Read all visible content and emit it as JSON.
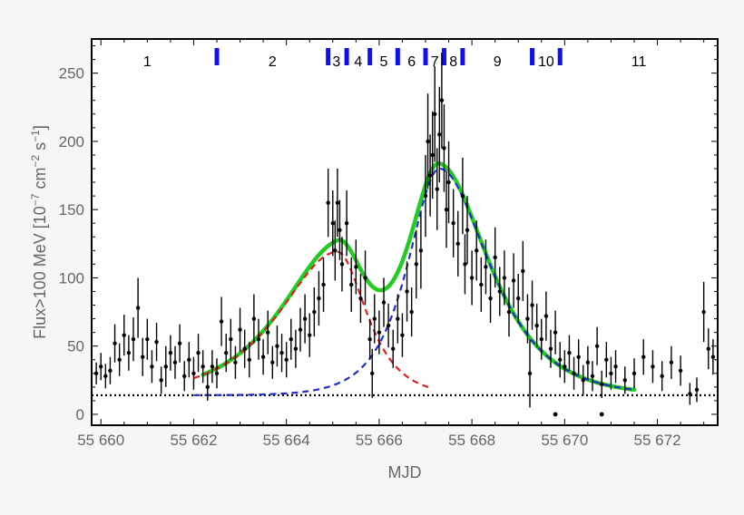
{
  "chart_data": {
    "type": "scatter",
    "title": "",
    "xlabel": "MJD",
    "ylabel_parts": [
      "Flux>100 MeV [10",
      "−7",
      " cm",
      "−2",
      " s",
      "−1",
      "]"
    ],
    "xlim": [
      55659.8,
      55673.3
    ],
    "ylim": [
      -8,
      275
    ],
    "x_ticks": [
      55660,
      55662,
      55664,
      55666,
      55668,
      55670,
      55672
    ],
    "x_tick_labels": [
      "55 660",
      "55 662",
      "55 664",
      "55 666",
      "55 668",
      "55 670",
      "55 672"
    ],
    "y_ticks": [
      0,
      50,
      100,
      150,
      200,
      250
    ],
    "y_tick_labels": [
      "0",
      "50",
      "100",
      "150",
      "200",
      "250"
    ],
    "baseline_flux": 14,
    "grid": false,
    "legend": "none",
    "period_boundaries": [
      55662.5,
      55664.9,
      55665.3,
      55665.8,
      55666.4,
      55667.0,
      55667.4,
      55667.8,
      55669.3,
      55669.9
    ],
    "period_labels": [
      {
        "label": "1",
        "x": 55661.0
      },
      {
        "label": "2",
        "x": 55663.7
      },
      {
        "label": "3",
        "x": 55665.08
      },
      {
        "label": "4",
        "x": 55665.55
      },
      {
        "label": "5",
        "x": 55666.1
      },
      {
        "label": "6",
        "x": 55666.7
      },
      {
        "label": "7",
        "x": 55667.2
      },
      {
        "label": "8",
        "x": 55667.6
      },
      {
        "label": "9",
        "x": 55668.55
      },
      {
        "label": "10",
        "x": 55669.6
      },
      {
        "label": "11",
        "x": 55671.6
      }
    ],
    "upper_limits": [
      {
        "x": 55669.8,
        "y": 0
      },
      {
        "x": 55670.8,
        "y": 0
      }
    ],
    "series": [
      {
        "name": "",
        "kind": "points",
        "color": "#000000",
        "points": [
          {
            "x": 55659.9,
            "y": 30,
            "e": 8
          },
          {
            "x": 55660.0,
            "y": 35,
            "e": 10
          },
          {
            "x": 55660.1,
            "y": 28,
            "e": 9
          },
          {
            "x": 55660.2,
            "y": 32,
            "e": 10
          },
          {
            "x": 55660.3,
            "y": 52,
            "e": 14
          },
          {
            "x": 55660.4,
            "y": 40,
            "e": 12
          },
          {
            "x": 55660.5,
            "y": 58,
            "e": 15
          },
          {
            "x": 55660.6,
            "y": 45,
            "e": 13
          },
          {
            "x": 55660.7,
            "y": 55,
            "e": 16
          },
          {
            "x": 55660.8,
            "y": 78,
            "e": 22
          },
          {
            "x": 55660.9,
            "y": 42,
            "e": 14
          },
          {
            "x": 55661.0,
            "y": 55,
            "e": 15
          },
          {
            "x": 55661.1,
            "y": 35,
            "e": 12
          },
          {
            "x": 55661.2,
            "y": 53,
            "e": 14
          },
          {
            "x": 55661.3,
            "y": 25,
            "e": 10
          },
          {
            "x": 55661.4,
            "y": 35,
            "e": 15
          },
          {
            "x": 55661.5,
            "y": 45,
            "e": 13
          },
          {
            "x": 55661.6,
            "y": 38,
            "e": 12
          },
          {
            "x": 55661.7,
            "y": 52,
            "e": 14
          },
          {
            "x": 55661.8,
            "y": 28,
            "e": 11
          },
          {
            "x": 55661.9,
            "y": 40,
            "e": 13
          },
          {
            "x": 55662.0,
            "y": 30,
            "e": 12
          },
          {
            "x": 55662.1,
            "y": 45,
            "e": 14
          },
          {
            "x": 55662.2,
            "y": 35,
            "e": 12
          },
          {
            "x": 55662.3,
            "y": 20,
            "e": 10
          },
          {
            "x": 55662.4,
            "y": 35,
            "e": 12
          },
          {
            "x": 55662.5,
            "y": 30,
            "e": 11
          },
          {
            "x": 55662.6,
            "y": 68,
            "e": 18
          },
          {
            "x": 55662.7,
            "y": 45,
            "e": 14
          },
          {
            "x": 55662.8,
            "y": 55,
            "e": 15
          },
          {
            "x": 55662.9,
            "y": 38,
            "e": 12
          },
          {
            "x": 55663.0,
            "y": 62,
            "e": 16
          },
          {
            "x": 55663.1,
            "y": 48,
            "e": 14
          },
          {
            "x": 55663.2,
            "y": 40,
            "e": 13
          },
          {
            "x": 55663.3,
            "y": 70,
            "e": 18
          },
          {
            "x": 55663.4,
            "y": 55,
            "e": 15
          },
          {
            "x": 55663.5,
            "y": 42,
            "e": 13
          },
          {
            "x": 55663.6,
            "y": 60,
            "e": 16
          },
          {
            "x": 55663.7,
            "y": 38,
            "e": 12
          },
          {
            "x": 55663.8,
            "y": 50,
            "e": 15
          },
          {
            "x": 55663.9,
            "y": 45,
            "e": 14
          },
          {
            "x": 55664.0,
            "y": 40,
            "e": 13
          },
          {
            "x": 55664.1,
            "y": 55,
            "e": 15
          },
          {
            "x": 55664.2,
            "y": 48,
            "e": 14
          },
          {
            "x": 55664.3,
            "y": 62,
            "e": 16
          },
          {
            "x": 55664.4,
            "y": 70,
            "e": 18
          },
          {
            "x": 55664.5,
            "y": 58,
            "e": 16
          },
          {
            "x": 55664.6,
            "y": 75,
            "e": 18
          },
          {
            "x": 55664.7,
            "y": 85,
            "e": 20
          },
          {
            "x": 55664.8,
            "y": 95,
            "e": 20
          },
          {
            "x": 55664.9,
            "y": 155,
            "e": 25
          },
          {
            "x": 55665.0,
            "y": 140,
            "e": 24
          },
          {
            "x": 55665.05,
            "y": 120,
            "e": 22
          },
          {
            "x": 55665.1,
            "y": 155,
            "e": 25
          },
          {
            "x": 55665.15,
            "y": 135,
            "e": 22
          },
          {
            "x": 55665.2,
            "y": 110,
            "e": 20
          },
          {
            "x": 55665.3,
            "y": 140,
            "e": 24
          },
          {
            "x": 55665.4,
            "y": 95,
            "e": 20
          },
          {
            "x": 55665.5,
            "y": 108,
            "e": 20
          },
          {
            "x": 55665.6,
            "y": 85,
            "e": 18
          },
          {
            "x": 55665.7,
            "y": 100,
            "e": 20
          },
          {
            "x": 55665.8,
            "y": 55,
            "e": 15
          },
          {
            "x": 55665.85,
            "y": 30,
            "e": 18
          },
          {
            "x": 55665.9,
            "y": 70,
            "e": 18
          },
          {
            "x": 55666.0,
            "y": 60,
            "e": 16
          },
          {
            "x": 55666.1,
            "y": 82,
            "e": 18
          },
          {
            "x": 55666.2,
            "y": 65,
            "e": 16
          },
          {
            "x": 55666.3,
            "y": 48,
            "e": 14
          },
          {
            "x": 55666.4,
            "y": 70,
            "e": 18
          },
          {
            "x": 55666.5,
            "y": 58,
            "e": 16
          },
          {
            "x": 55666.6,
            "y": 90,
            "e": 22
          },
          {
            "x": 55666.7,
            "y": 75,
            "e": 18
          },
          {
            "x": 55666.8,
            "y": 110,
            "e": 25
          },
          {
            "x": 55666.9,
            "y": 120,
            "e": 28
          },
          {
            "x": 55667.0,
            "y": 160,
            "e": 30
          },
          {
            "x": 55667.05,
            "y": 200,
            "e": 35
          },
          {
            "x": 55667.1,
            "y": 175,
            "e": 30
          },
          {
            "x": 55667.15,
            "y": 190,
            "e": 32
          },
          {
            "x": 55667.2,
            "y": 220,
            "e": 35
          },
          {
            "x": 55667.25,
            "y": 165,
            "e": 30
          },
          {
            "x": 55667.3,
            "y": 205,
            "e": 35
          },
          {
            "x": 55667.35,
            "y": 230,
            "e": 35
          },
          {
            "x": 55667.4,
            "y": 195,
            "e": 32
          },
          {
            "x": 55667.45,
            "y": 150,
            "e": 28
          },
          {
            "x": 55667.5,
            "y": 170,
            "e": 30
          },
          {
            "x": 55667.6,
            "y": 140,
            "e": 25
          },
          {
            "x": 55667.7,
            "y": 125,
            "e": 24
          },
          {
            "x": 55667.8,
            "y": 160,
            "e": 28
          },
          {
            "x": 55667.85,
            "y": 110,
            "e": 22
          },
          {
            "x": 55667.9,
            "y": 135,
            "e": 25
          },
          {
            "x": 55668.0,
            "y": 100,
            "e": 20
          },
          {
            "x": 55668.1,
            "y": 120,
            "e": 22
          },
          {
            "x": 55668.2,
            "y": 95,
            "e": 20
          },
          {
            "x": 55668.3,
            "y": 108,
            "e": 20
          },
          {
            "x": 55668.4,
            "y": 85,
            "e": 18
          },
          {
            "x": 55668.5,
            "y": 115,
            "e": 22
          },
          {
            "x": 55668.6,
            "y": 90,
            "e": 18
          },
          {
            "x": 55668.7,
            "y": 100,
            "e": 20
          },
          {
            "x": 55668.8,
            "y": 75,
            "e": 18
          },
          {
            "x": 55668.9,
            "y": 98,
            "e": 20
          },
          {
            "x": 55669.0,
            "y": 85,
            "e": 18
          },
          {
            "x": 55669.1,
            "y": 105,
            "e": 22
          },
          {
            "x": 55669.2,
            "y": 70,
            "e": 18
          },
          {
            "x": 55669.25,
            "y": 30,
            "e": 25
          },
          {
            "x": 55669.3,
            "y": 80,
            "e": 18
          },
          {
            "x": 55669.4,
            "y": 65,
            "e": 16
          },
          {
            "x": 55669.5,
            "y": 55,
            "e": 15
          },
          {
            "x": 55669.6,
            "y": 72,
            "e": 18
          },
          {
            "x": 55669.7,
            "y": 48,
            "e": 14
          },
          {
            "x": 55669.8,
            "y": 60,
            "e": 16
          },
          {
            "x": 55669.9,
            "y": 40,
            "e": 13
          },
          {
            "x": 55670.0,
            "y": 35,
            "e": 12
          },
          {
            "x": 55670.1,
            "y": 45,
            "e": 13
          },
          {
            "x": 55670.2,
            "y": 30,
            "e": 12
          },
          {
            "x": 55670.3,
            "y": 42,
            "e": 13
          },
          {
            "x": 55670.4,
            "y": 25,
            "e": 11
          },
          {
            "x": 55670.5,
            "y": 38,
            "e": 12
          },
          {
            "x": 55670.6,
            "y": 28,
            "e": 11
          },
          {
            "x": 55670.7,
            "y": 50,
            "e": 14
          },
          {
            "x": 55670.8,
            "y": 22,
            "e": 10
          },
          {
            "x": 55670.9,
            "y": 40,
            "e": 13
          },
          {
            "x": 55671.0,
            "y": 30,
            "e": 12
          },
          {
            "x": 55671.1,
            "y": 35,
            "e": 12
          },
          {
            "x": 55671.3,
            "y": 25,
            "e": 10
          },
          {
            "x": 55671.5,
            "y": 30,
            "e": 11
          },
          {
            "x": 55671.7,
            "y": 42,
            "e": 13
          },
          {
            "x": 55671.9,
            "y": 35,
            "e": 12
          },
          {
            "x": 55672.1,
            "y": 28,
            "e": 11
          },
          {
            "x": 55672.3,
            "y": 38,
            "e": 12
          },
          {
            "x": 55672.5,
            "y": 32,
            "e": 11
          },
          {
            "x": 55672.7,
            "y": 15,
            "e": 8
          },
          {
            "x": 55672.85,
            "y": 18,
            "e": 9
          },
          {
            "x": 55673.0,
            "y": 75,
            "e": 22
          },
          {
            "x": 55673.1,
            "y": 48,
            "e": 15
          },
          {
            "x": 55673.2,
            "y": 42,
            "e": 13
          }
        ]
      },
      {
        "name": "",
        "kind": "model",
        "color": "#e02020",
        "dash": "dashed",
        "model": {
          "peak_x": 55665.1,
          "peak_y": 105,
          "rise": 1.1,
          "decay": 0.55,
          "base": 14,
          "x_from": 55662.0,
          "x_to": 55667.1
        }
      },
      {
        "name": "",
        "kind": "model",
        "color": "#1f2fd0",
        "dash": "dashed",
        "model": {
          "peak_x": 55667.3,
          "peak_y": 166,
          "rise": 0.6,
          "decay": 0.95,
          "base": 14,
          "x_from": 55662.0,
          "x_to": 55671.5
        }
      },
      {
        "name": "",
        "kind": "sum",
        "color": "#22cc22",
        "x_from": 55662.2,
        "x_to": 55671.5
      }
    ]
  }
}
